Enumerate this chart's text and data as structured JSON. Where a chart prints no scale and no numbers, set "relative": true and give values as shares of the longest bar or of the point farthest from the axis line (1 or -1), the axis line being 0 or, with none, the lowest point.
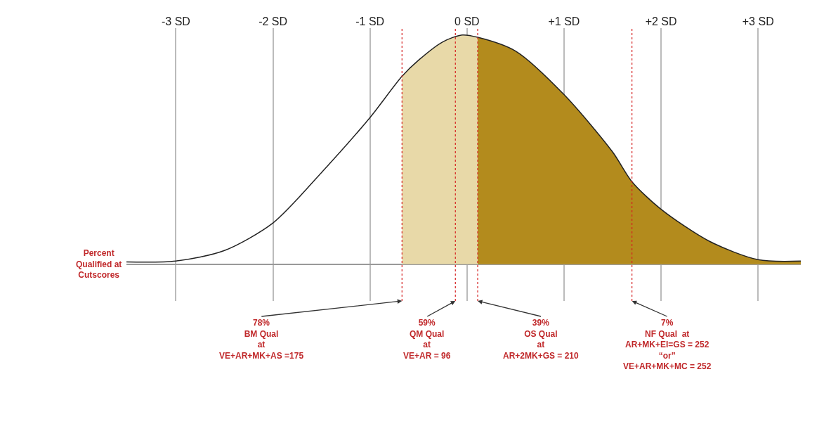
{
  "chart_data": {
    "type": "line",
    "relative": true,
    "ylabel": "Percent\nQualified at\nCutscores",
    "xlim": [
      -3.51,
      3.44
    ],
    "xticks": [
      {
        "value": -3,
        "label": "-3 SD"
      },
      {
        "value": -2,
        "label": "-2 SD"
      },
      {
        "value": -1,
        "label": "-1 SD"
      },
      {
        "value": 0,
        "label": "0 SD"
      },
      {
        "value": 1,
        "label": "+1 SD"
      },
      {
        "value": 2,
        "label": "+2 SD"
      },
      {
        "value": 3,
        "label": "+3 SD"
      }
    ],
    "grid": "x",
    "marker": "none",
    "line_style": "solid",
    "series": [
      {
        "type": "area",
        "color": "#e8d9a8",
        "x": [
          -0.67,
          -0.5,
          -0.25,
          -0.05,
          0.11,
          0.5,
          1,
          1.5,
          1.7,
          2,
          2.5,
          3,
          3.44
        ],
        "values": [
          0.82,
          0.89,
          0.97,
          1,
          0.99,
          0.93,
          0.74,
          0.49,
          0.36,
          0.24,
          0.1,
          0.02,
          0.014
        ]
      },
      {
        "type": "area",
        "color": "#b38b1d",
        "x": [
          0.11,
          0.5,
          1,
          1.5,
          1.7,
          2,
          2.5,
          3,
          3.44
        ],
        "values": [
          0.99,
          0.93,
          0.74,
          0.49,
          0.36,
          0.24,
          0.1,
          0.02,
          0.014
        ]
      },
      {
        "color": "#222222",
        "x": [
          -3.51,
          -3,
          -2.5,
          -2,
          -1.5,
          -1,
          -0.67,
          -0.5,
          -0.25,
          -0.05,
          0.11,
          0.5,
          1,
          1.5,
          1.7,
          2,
          2.5,
          3,
          3.44
        ],
        "values": [
          0.01,
          0.014,
          0.06,
          0.18,
          0.4,
          0.64,
          0.82,
          0.89,
          0.97,
          1,
          0.99,
          0.93,
          0.74,
          0.49,
          0.36,
          0.24,
          0.1,
          0.02,
          0.014
        ]
      }
    ],
    "ref_lines": [
      {
        "axis": "x",
        "value": -0.67,
        "color": "#d62020",
        "line_style": "dotted"
      },
      {
        "axis": "x",
        "value": -0.12,
        "color": "#d62020",
        "line_style": "dotted"
      },
      {
        "axis": "x",
        "value": 0.11,
        "color": "#d62020",
        "line_style": "dotted"
      },
      {
        "axis": "x",
        "value": 1.7,
        "color": "#d62020",
        "line_style": "dotted"
      }
    ],
    "annotations": [
      "78%\nBM Qual\nat\nVE+AR+MK+AS =175",
      "59%\nQM Qual\nat\nVE+AR = 96",
      "39%\nOS Qual\nat\nAR+2MK+GS = 210",
      "7%\nNF Qual  at\nAR+MK+EI=GS = 252\n“or”\nVE+AR+MK+MC = 252"
    ]
  }
}
